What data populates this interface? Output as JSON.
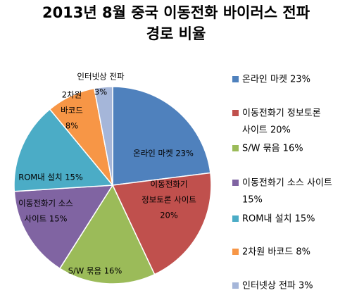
{
  "chart_data": {
    "type": "pie",
    "title_line1": "2013년 8월 중국 이동전화 바이러스 전파",
    "title_line2": "경로 비율",
    "slices": [
      {
        "label": "온라인 마켓",
        "value": 23,
        "color": "#4F81BD",
        "pie_label": [
          "온라인 마켓 23%"
        ],
        "legend_label": [
          "온라인 마켓 23%"
        ]
      },
      {
        "label": "이동전화기 정보토론 사이트",
        "value": 20,
        "color": "#C0504D",
        "pie_label": [
          "이동전화기",
          "정보토론 사이트",
          "20%"
        ],
        "legend_label": [
          "이동전화기 정보토론",
          "사이트 20%"
        ]
      },
      {
        "label": "S/W 묶음",
        "value": 16,
        "color": "#9BBB59",
        "pie_label": [
          "S/W 묶음 16%"
        ],
        "legend_label": [
          "S/W 묶음 16%"
        ]
      },
      {
        "label": "이동전화기 소스 사이트",
        "value": 15,
        "color": "#8064A2",
        "pie_label": [
          "이동전화기 소스",
          "사이트 15%"
        ],
        "legend_label": [
          "이동전화기 소스 사이트",
          "15%"
        ]
      },
      {
        "label": "ROM내 설치",
        "value": 15,
        "color": "#4BACC6",
        "pie_label": [
          "ROM내 설치 15%"
        ],
        "legend_label": [
          "ROM내 설치 15%"
        ]
      },
      {
        "label": "2차원 바코드",
        "value": 8,
        "color": "#F79646",
        "pie_label": [
          "2차원",
          "바코드",
          "8%"
        ],
        "legend_label": [
          "2차원 바코드 8%"
        ]
      },
      {
        "label": "인터넷상 전파",
        "value": 3,
        "color": "#A5B6D9",
        "pie_label": [
          "인터넷상 전파",
          "3%"
        ],
        "legend_label": [
          "인터넷상 전파 3%"
        ]
      }
    ],
    "legend_position": "right"
  }
}
